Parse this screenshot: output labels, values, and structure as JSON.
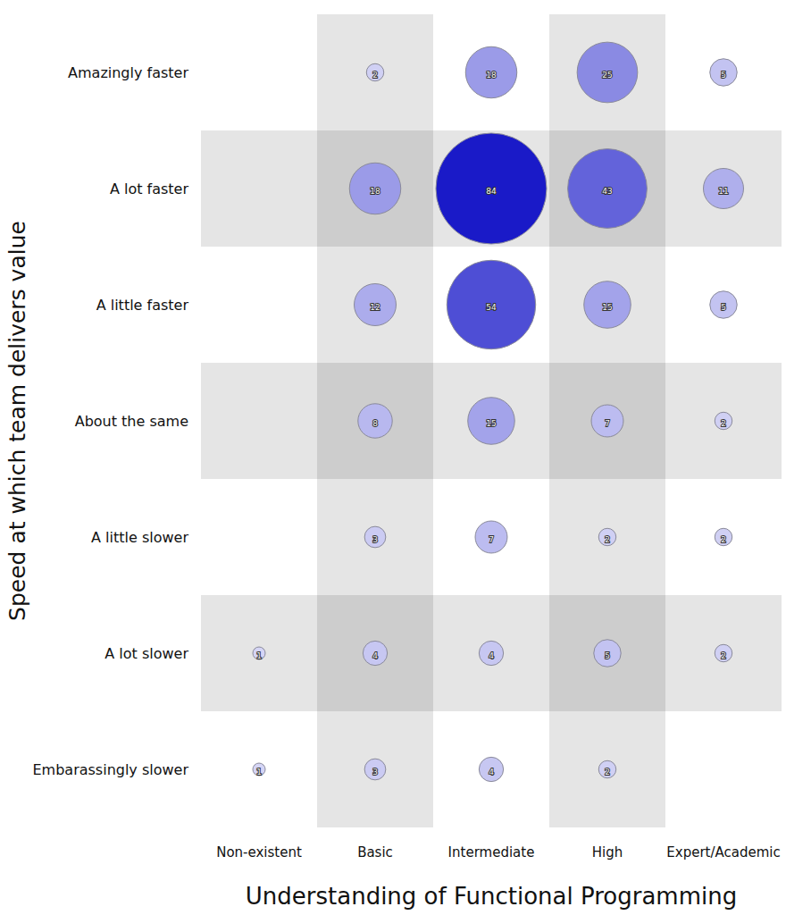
{
  "chart_data": {
    "type": "bubble",
    "x_label": "Understanding of Functional Programming",
    "y_label": "Speed at which team delivers value",
    "categories": [
      "Non-existent",
      "Basic",
      "Intermediate",
      "High",
      "Expert/Academic"
    ],
    "y_categories": [
      "Amazingly faster",
      "A lot faster",
      "A little faster",
      "About the same",
      "A little slower",
      "A lot slower",
      "Embarassingly slower"
    ],
    "color": "#1a1ac8",
    "data_labels": true,
    "points": [
      {
        "x": "Basic",
        "y": "Amazingly faster",
        "size": 2
      },
      {
        "x": "Intermediate",
        "y": "Amazingly faster",
        "size": 18
      },
      {
        "x": "High",
        "y": "Amazingly faster",
        "size": 25
      },
      {
        "x": "Expert/Academic",
        "y": "Amazingly faster",
        "size": 5
      },
      {
        "x": "Basic",
        "y": "A lot faster",
        "size": 18
      },
      {
        "x": "Intermediate",
        "y": "A lot faster",
        "size": 84
      },
      {
        "x": "High",
        "y": "A lot faster",
        "size": 43
      },
      {
        "x": "Expert/Academic",
        "y": "A lot faster",
        "size": 11
      },
      {
        "x": "Basic",
        "y": "A little faster",
        "size": 12
      },
      {
        "x": "Intermediate",
        "y": "A little faster",
        "size": 54
      },
      {
        "x": "High",
        "y": "A little faster",
        "size": 15
      },
      {
        "x": "Expert/Academic",
        "y": "A little faster",
        "size": 5
      },
      {
        "x": "Basic",
        "y": "About the same",
        "size": 8
      },
      {
        "x": "Intermediate",
        "y": "About the same",
        "size": 15
      },
      {
        "x": "High",
        "y": "About the same",
        "size": 7
      },
      {
        "x": "Expert/Academic",
        "y": "About the same",
        "size": 2
      },
      {
        "x": "Basic",
        "y": "A little slower",
        "size": 3
      },
      {
        "x": "Intermediate",
        "y": "A little slower",
        "size": 7
      },
      {
        "x": "High",
        "y": "A little slower",
        "size": 2
      },
      {
        "x": "Expert/Academic",
        "y": "A little slower",
        "size": 2
      },
      {
        "x": "Non-existent",
        "y": "A lot slower",
        "size": 1
      },
      {
        "x": "Basic",
        "y": "A lot slower",
        "size": 4
      },
      {
        "x": "Intermediate",
        "y": "A lot slower",
        "size": 4
      },
      {
        "x": "High",
        "y": "A lot slower",
        "size": 5
      },
      {
        "x": "Expert/Academic",
        "y": "A lot slower",
        "size": 2
      },
      {
        "x": "Non-existent",
        "y": "Embarassingly slower",
        "size": 1
      },
      {
        "x": "Basic",
        "y": "Embarassingly slower",
        "size": 3
      },
      {
        "x": "Intermediate",
        "y": "Embarassingly slower",
        "size": 4
      },
      {
        "x": "High",
        "y": "Embarassingly slower",
        "size": 2
      }
    ]
  }
}
